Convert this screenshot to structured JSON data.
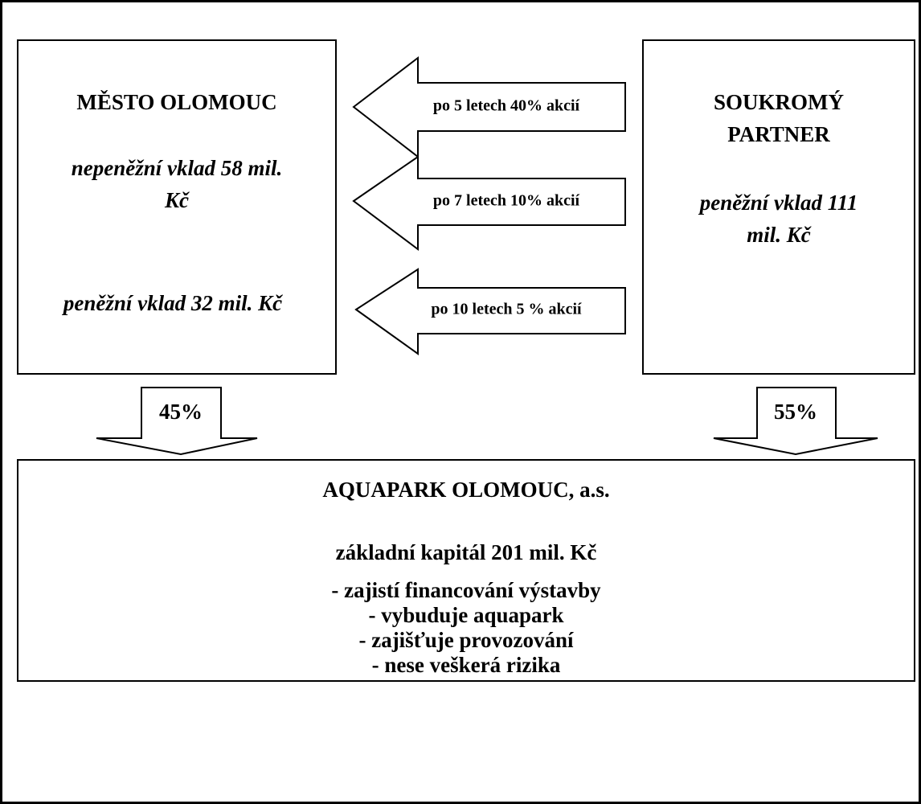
{
  "left_box": {
    "title": "MĚSTO OLOMOUC",
    "contributions": [
      [
        "nepeněžní vklad 58 mil.",
        "Kč"
      ],
      [
        "peněžní vklad 32 mil. Kč"
      ]
    ]
  },
  "right_box": {
    "title": [
      "SOUKROMÝ",
      "PARTNER"
    ],
    "contribution": [
      "peněžní vklad 111",
      "mil. Kč"
    ]
  },
  "transfers": [
    "po 5 letech 40% akcií",
    "po 7 letech 10% akcií",
    "po 10 letech 5 % akcií"
  ],
  "shares": {
    "left": "45%",
    "right": "55%"
  },
  "company": {
    "title": "AQUAPARK OLOMOUC, a.s.",
    "capital": "základní kapitál 201 mil. Kč",
    "roles": [
      "- zajistí financování výstavby",
      "- vybuduje aquapark",
      "- zajišťuje provozování",
      "- nese veškerá rizika"
    ]
  }
}
